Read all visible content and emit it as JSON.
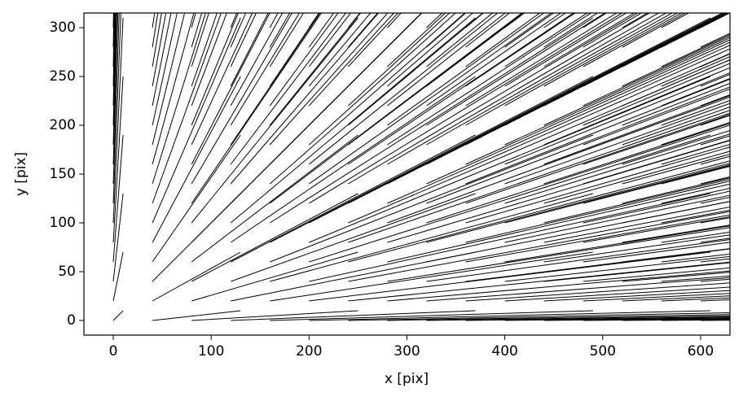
{
  "chart_data": {
    "type": "quiver",
    "xlabel": "x [pix]",
    "ylabel": "y [pix]",
    "x": [
      0,
      40,
      80,
      120,
      160,
      200,
      240,
      280,
      320,
      360,
      400,
      440,
      480,
      520,
      560,
      600
    ],
    "y": [
      0,
      20,
      40,
      60,
      80,
      100,
      120,
      140,
      160,
      180,
      200,
      220,
      240,
      260,
      280,
      300
    ],
    "u": [
      10,
      90,
      170,
      250,
      330,
      410,
      490,
      570,
      650,
      730,
      810,
      890,
      970,
      1050,
      1130,
      1210
    ],
    "v": [
      10,
      50,
      90,
      130,
      170,
      210,
      250,
      290,
      330,
      370,
      410,
      450,
      490,
      530,
      570,
      610
    ],
    "color": "#000000",
    "xlim": [
      -30,
      630
    ],
    "ylim": [
      -15,
      315
    ],
    "xticks": [
      0,
      100,
      200,
      300,
      400,
      500,
      600
    ],
    "yticks": [
      0,
      50,
      100,
      150,
      200,
      250,
      300
    ]
  }
}
